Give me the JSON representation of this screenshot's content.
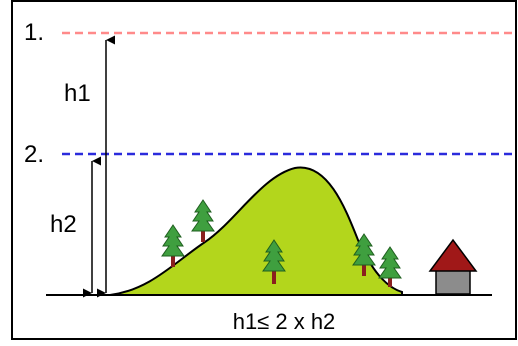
{
  "diagram": {
    "level_1_label": "1.",
    "level_2_label": "2.",
    "h1_label": "h1",
    "h2_label": "h2",
    "formula": "h1≤ 2 x h2",
    "colors": {
      "level_1_line": "#ff8a8a",
      "level_2_line": "#2b2bdc",
      "hill_fill": "#b3d61c",
      "tree_foliage": "#3f9f3f",
      "tree_trunk": "#8a1f1f",
      "roof": "#a01818",
      "house_wall": "#8c8c8c",
      "ink": "#000000",
      "frame_border": "#000000"
    }
  }
}
